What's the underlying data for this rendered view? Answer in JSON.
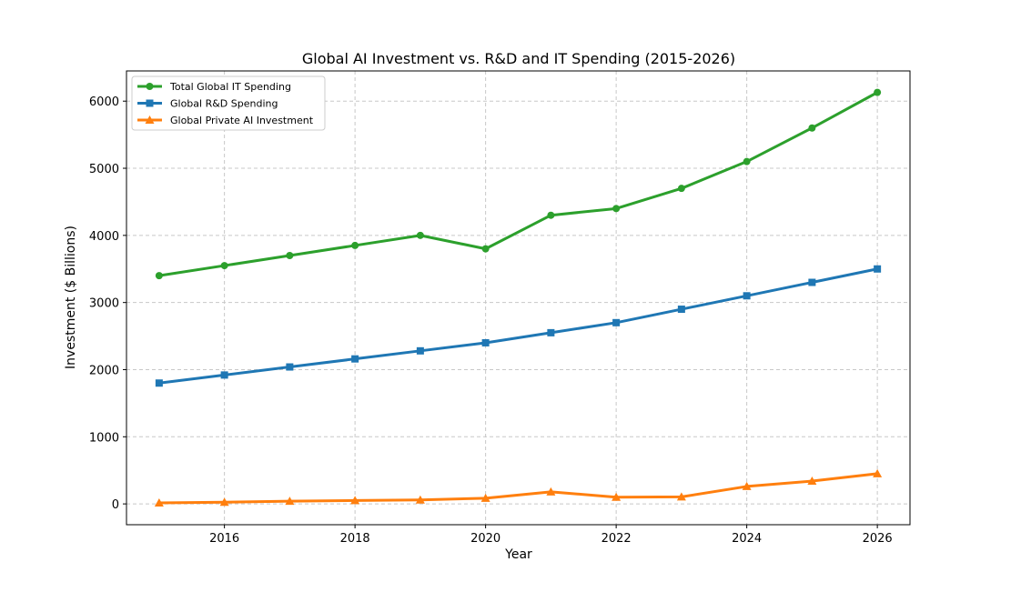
{
  "chart_data": {
    "type": "line",
    "title": "Global AI Investment vs. R&D and IT Spending (2015-2026)",
    "xlabel": "Year",
    "ylabel": "Investment ($ Billions)",
    "x": [
      2015,
      2016,
      2017,
      2018,
      2019,
      2020,
      2021,
      2022,
      2023,
      2024,
      2025,
      2026
    ],
    "xlim": [
      2014.5,
      2026.5
    ],
    "ylim": [
      -310,
      6450
    ],
    "xticks": [
      2016,
      2018,
      2020,
      2022,
      2024,
      2026
    ],
    "yticks": [
      0,
      1000,
      2000,
      3000,
      4000,
      5000,
      6000
    ],
    "grid": true,
    "legend_position": "top-left",
    "series": [
      {
        "name": "Total Global IT Spending",
        "color": "#2ca02c",
        "marker": "circle",
        "values": [
          3400,
          3550,
          3700,
          3850,
          4000,
          3800,
          4300,
          4400,
          4700,
          5100,
          5600,
          6130
        ]
      },
      {
        "name": "Global R&D Spending",
        "color": "#1f77b4",
        "marker": "square",
        "values": [
          1800,
          1920,
          2040,
          2160,
          2280,
          2400,
          2550,
          2700,
          2900,
          3100,
          3300,
          3500
        ]
      },
      {
        "name": "Global Private AI Investment",
        "color": "#ff7f0e",
        "marker": "triangle",
        "values": [
          15,
          25,
          40,
          50,
          60,
          85,
          180,
          100,
          105,
          260,
          340,
          450
        ]
      }
    ]
  }
}
